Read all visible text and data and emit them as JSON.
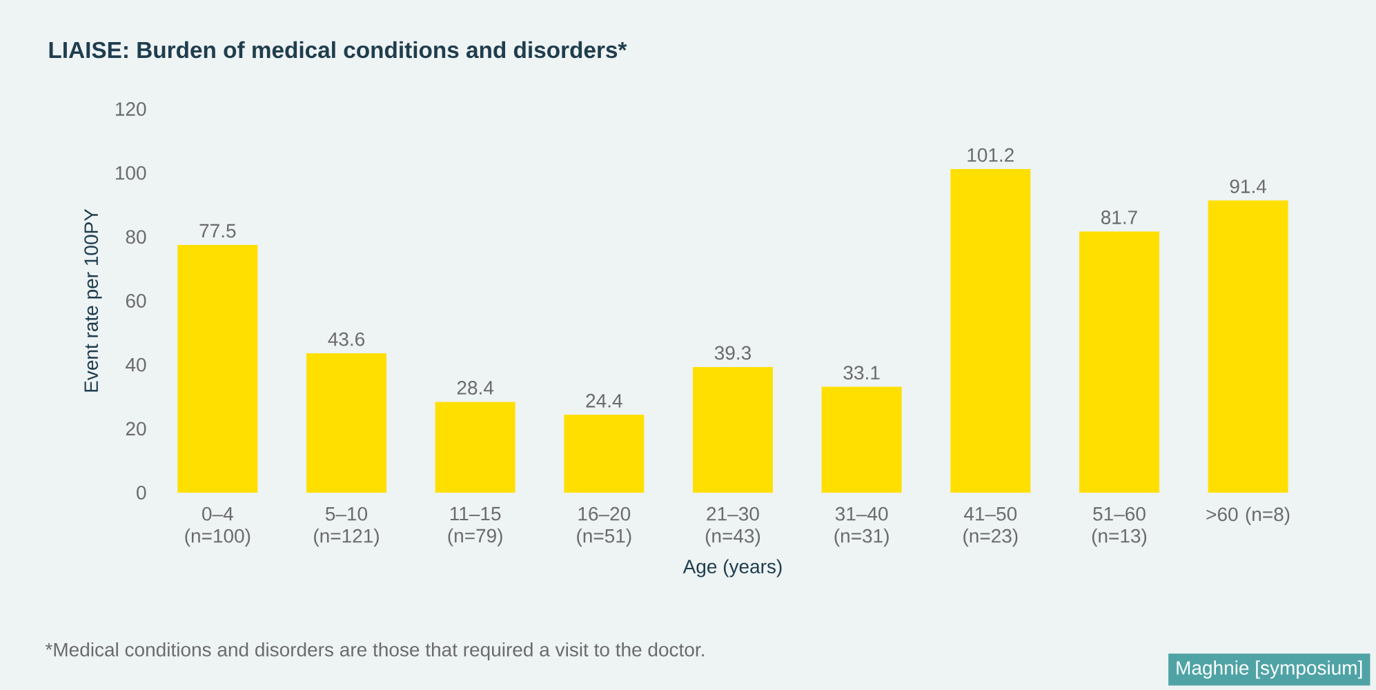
{
  "chart_data": {
    "type": "bar",
    "title": "LIAISE: Burden of medical conditions and disorders*",
    "xlabel": "Age (years)",
    "ylabel": "Event rate per 100PY",
    "categories": [
      "0–4 (n=100)",
      "5–10 (n=121)",
      "11–15 (n=79)",
      "16–20 (n=51)",
      "21–30 (n=43)",
      "31–40 (n=31)",
      "41–50 (n=23)",
      "51–60 (n=13)",
      ">60 (n=8)"
    ],
    "values": [
      77.5,
      43.6,
      28.4,
      24.4,
      39.3,
      33.1,
      101.2,
      81.7,
      91.4
    ],
    "color": "#ffdf00",
    "ylim": [
      0,
      120
    ],
    "yticks": [
      0,
      20,
      40,
      60,
      80,
      100,
      120
    ],
    "data_labels": true,
    "annotations": [
      "*Medical conditions and disorders are those that required a visit to the doctor.",
      "Maghnie [symposium]"
    ]
  }
}
